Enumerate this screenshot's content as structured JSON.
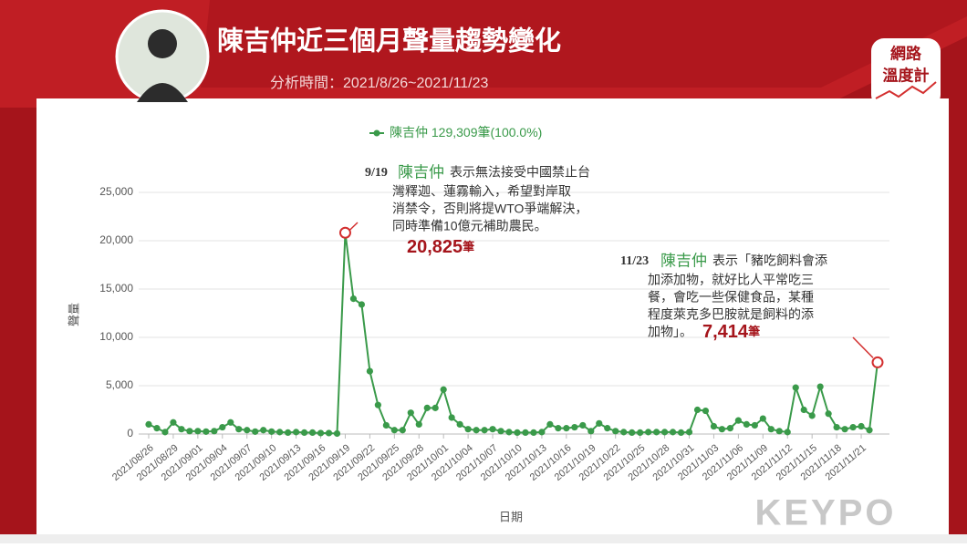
{
  "header": {
    "title": "陳吉仲近三個月聲量趨勢變化",
    "subtitle": "分析時間：2021/8/26~2021/11/23",
    "logo": [
      "網路",
      "溫度計"
    ]
  },
  "chart_data": {
    "type": "line",
    "categories": [
      "2021/08/26",
      null,
      null,
      "2021/08/29",
      null,
      null,
      "2021/09/01",
      null,
      null,
      "2021/09/04",
      null,
      null,
      "2021/09/07",
      null,
      null,
      "2021/09/10",
      null,
      null,
      "2021/09/13",
      null,
      null,
      "2021/09/16",
      null,
      null,
      "2021/09/19",
      null,
      null,
      "2021/09/22",
      null,
      null,
      "2021/09/25",
      null,
      null,
      "2021/09/28",
      null,
      null,
      "2021/10/01",
      null,
      null,
      "2021/10/04",
      null,
      null,
      "2021/10/07",
      null,
      null,
      "2021/10/10",
      null,
      null,
      "2021/10/13",
      null,
      null,
      "2021/10/16",
      null,
      null,
      "2021/10/19",
      null,
      null,
      "2021/10/22",
      null,
      null,
      "2021/10/25",
      null,
      null,
      "2021/10/28",
      null,
      null,
      "2021/10/31",
      null,
      null,
      "2021/11/03",
      null,
      null,
      "2021/11/06",
      null,
      null,
      "2021/11/09",
      null,
      null,
      "2021/11/12",
      null,
      null,
      "2021/11/15",
      null,
      null,
      "2021/11/18",
      null,
      null,
      "2021/11/21",
      null,
      null
    ],
    "series": [
      {
        "name": "陳吉仲",
        "legend_total": "129,309筆(100.0%)",
        "color": "#3a9a4a",
        "values": [
          1000,
          600,
          200,
          1200,
          500,
          300,
          300,
          250,
          300,
          700,
          1200,
          500,
          400,
          250,
          400,
          250,
          200,
          150,
          200,
          150,
          150,
          100,
          100,
          50,
          20825,
          14000,
          13400,
          6500,
          3000,
          900,
          400,
          400,
          2200,
          1000,
          2700,
          2700,
          4600,
          1700,
          1000,
          500,
          400,
          400,
          500,
          300,
          200,
          150,
          150,
          150,
          200,
          1000,
          600,
          600,
          700,
          900,
          300,
          1100,
          600,
          300,
          200,
          150,
          150,
          200,
          200,
          200,
          200,
          150,
          200,
          2500,
          2400,
          800,
          500,
          600,
          1400,
          1000,
          900,
          1600,
          500,
          300,
          200,
          4800,
          2500,
          1900,
          4900,
          2100,
          700,
          500,
          700,
          800,
          400,
          7414
        ]
      }
    ],
    "ylim": [
      0,
      25000
    ],
    "yticks": [
      0,
      {
        "value": 5000,
        "label": "5,000"
      },
      {
        "value": 10000,
        "label": "10,000"
      },
      {
        "value": 15000,
        "label": "15,000"
      },
      {
        "value": 20000,
        "label": "20,000"
      },
      {
        "value": 25000,
        "label": "25,000"
      }
    ],
    "ylabel": "聲量",
    "xlabel": "日期",
    "grid": true,
    "annotations": [
      {
        "index": 24,
        "date": "9/19",
        "name": "陳吉仲",
        "lines": [
          "表示無法接受中國禁止台",
          "灣釋迦、蓮霧輸入，希望對岸取",
          "消禁令，否則將提WTO爭端解決，",
          "同時準備10億元補助農民。"
        ],
        "value": "20,825",
        "unit": "筆"
      },
      {
        "index": 89,
        "date": "11/23",
        "name": "陳吉仲",
        "lines": [
          "表示「豬吃飼料會添",
          "加添加物，就好比人平常吃三",
          "餐，會吃一些保健食品，某種",
          "程度萊克多巴胺就是飼料的添",
          "加物」。"
        ],
        "value": "7,414",
        "unit": "筆"
      }
    ],
    "watermark": "KEYPO"
  }
}
